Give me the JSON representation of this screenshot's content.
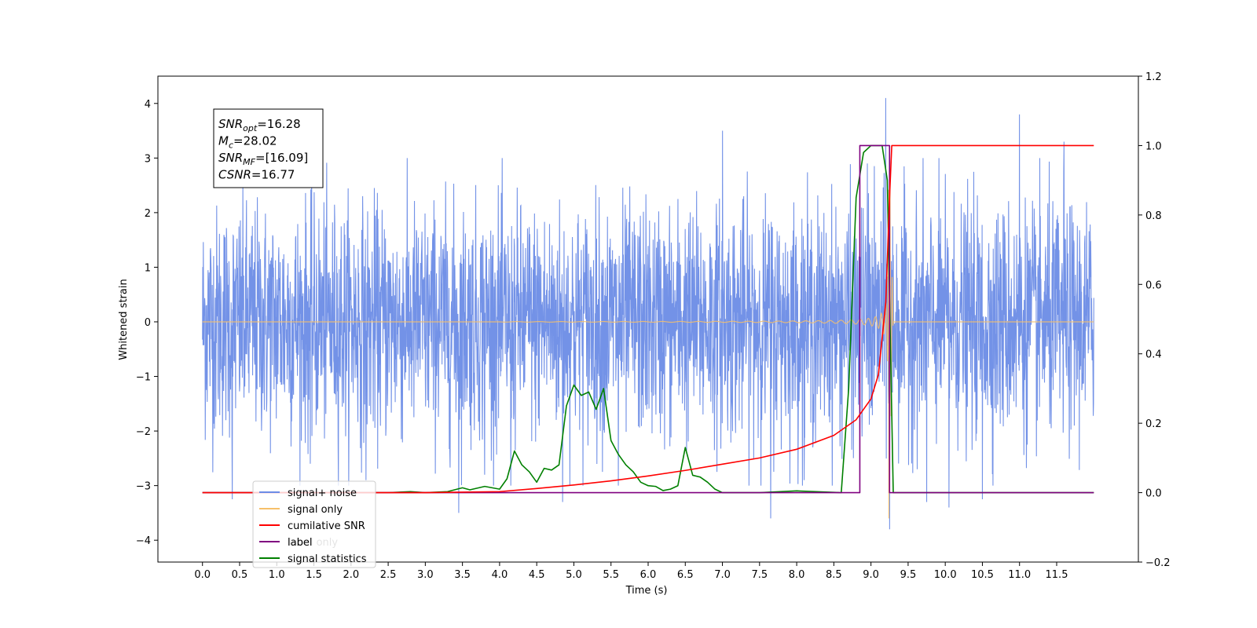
{
  "chart_data": {
    "type": "line",
    "xlabel": "Time (s)",
    "ylabel_left": "Whitened strain",
    "ylabel_right": "",
    "xlim": [
      -0.6,
      12.6
    ],
    "ylim_left": [
      -4.4,
      4.5
    ],
    "ylim_right": [
      -0.2,
      1.2
    ],
    "x_ticks": [
      "0.0",
      "0.5",
      "1.0",
      "1.5",
      "2.0",
      "2.5",
      "3.0",
      "3.5",
      "4.0",
      "4.5",
      "5.0",
      "5.5",
      "6.0",
      "6.5",
      "7.0",
      "7.5",
      "8.0",
      "8.5",
      "9.0",
      "9.5",
      "10.0",
      "10.5",
      "11.0",
      "11.5"
    ],
    "y_ticks_left": [
      "4",
      "3",
      "2",
      "1",
      "0",
      "−1",
      "−2",
      "−3",
      "−4"
    ],
    "y_ticks_right": [
      "1.2",
      "1.0",
      "0.8",
      "0.6",
      "0.4",
      "0.2",
      "0.0",
      "−0.2"
    ],
    "grid": false,
    "legend_position": "lower-left",
    "series": [
      {
        "name": "signal+ noise",
        "axis": "left",
        "color": "#6c8ce6",
        "x_range": [
          0.0,
          12.0
        ],
        "envelope_top": 2.4,
        "envelope_bottom": -2.4,
        "spikes": [
          [
            0.4,
            -3.25
          ],
          [
            1.45,
            -2.6
          ],
          [
            2.2,
            -2.9
          ],
          [
            3.45,
            -3.5
          ],
          [
            4.15,
            -3.0
          ],
          [
            4.85,
            -3.3
          ],
          [
            5.6,
            -3.0
          ],
          [
            7.0,
            3.5
          ],
          [
            7.65,
            -3.6
          ],
          [
            8.1,
            -2.9
          ],
          [
            9.2,
            4.1
          ],
          [
            9.25,
            -3.8
          ],
          [
            9.75,
            -3.3
          ],
          [
            10.05,
            -3.4
          ],
          [
            10.5,
            -3.25
          ],
          [
            11.0,
            3.8
          ],
          [
            11.6,
            3.3
          ],
          [
            8.95,
            2.9
          ],
          [
            3.8,
            -2.8
          ]
        ]
      },
      {
        "name": "signal only",
        "axis": "left",
        "color": "#f7c06a",
        "chirp": {
          "t_merge": 9.24,
          "t_start": 4.0,
          "min_time": -3.6,
          "max_time": 3.0
        }
      },
      {
        "name": "cumilative SNR",
        "axis": "right",
        "color": "#ff0000",
        "x": [
          0.0,
          2.0,
          3.0,
          4.0,
          4.5,
          5.0,
          5.5,
          6.0,
          6.5,
          7.0,
          7.5,
          8.0,
          8.5,
          8.8,
          9.0,
          9.1,
          9.2,
          9.25,
          9.28,
          12.0
        ],
        "values": [
          0.0,
          0.0,
          0.0,
          0.003,
          0.012,
          0.022,
          0.034,
          0.048,
          0.064,
          0.082,
          0.1,
          0.125,
          0.165,
          0.21,
          0.27,
          0.34,
          0.55,
          0.85,
          1.0,
          1.0
        ]
      },
      {
        "name": "label",
        "axis": "right",
        "color": "#800080",
        "x": [
          0.0,
          8.85,
          8.85,
          9.25,
          9.25,
          12.0
        ],
        "values": [
          0.0,
          0.0,
          1.0,
          1.0,
          0.0,
          0.0
        ]
      },
      {
        "name": "signal statistics",
        "axis": "right",
        "color": "#008000",
        "x": [
          0.0,
          2.5,
          2.8,
          3.0,
          3.3,
          3.5,
          3.6,
          3.8,
          4.0,
          4.1,
          4.2,
          4.3,
          4.4,
          4.5,
          4.6,
          4.7,
          4.8,
          4.9,
          5.0,
          5.1,
          5.2,
          5.3,
          5.4,
          5.5,
          5.6,
          5.7,
          5.8,
          5.9,
          6.0,
          6.1,
          6.2,
          6.3,
          6.4,
          6.5,
          6.6,
          6.7,
          6.8,
          6.9,
          7.0,
          7.5,
          8.0,
          8.6,
          8.7,
          8.8,
          8.9,
          9.0,
          9.1,
          9.15,
          9.22,
          9.3,
          12.0
        ],
        "values": [
          0.0,
          0.0,
          0.003,
          0.0,
          0.003,
          0.014,
          0.008,
          0.018,
          0.01,
          0.04,
          0.12,
          0.08,
          0.06,
          0.03,
          0.07,
          0.065,
          0.08,
          0.25,
          0.31,
          0.28,
          0.29,
          0.24,
          0.3,
          0.15,
          0.11,
          0.08,
          0.06,
          0.03,
          0.02,
          0.018,
          0.006,
          0.01,
          0.02,
          0.13,
          0.05,
          0.045,
          0.03,
          0.01,
          0.0,
          0.0,
          0.005,
          0.0,
          0.3,
          0.85,
          0.98,
          1.0,
          1.0,
          1.0,
          0.9,
          0.0,
          0.0
        ]
      }
    ],
    "annotation": {
      "lines": [
        {
          "var": "SNR",
          "sub": "opt",
          "value": "=16.28"
        },
        {
          "var": "M",
          "sub": "c",
          "value": "=28.02"
        },
        {
          "var": "SNR",
          "sub": "MF",
          "value": "=[16.09]"
        },
        {
          "var": "CSNR",
          "sub": "",
          "value": "=16.77"
        }
      ]
    },
    "legend_entries": [
      {
        "label": "signal+ noise",
        "color": "#6c8ce6"
      },
      {
        "label": "signal only",
        "color": "#f7c06a"
      },
      {
        "label": "cumilative SNR",
        "color": "#ff0000"
      },
      {
        "label": "label",
        "color": "#800080"
      },
      {
        "label": "signal statistics",
        "color": "#008000"
      }
    ],
    "legend_ghost_text": [
      "label only"
    ]
  }
}
